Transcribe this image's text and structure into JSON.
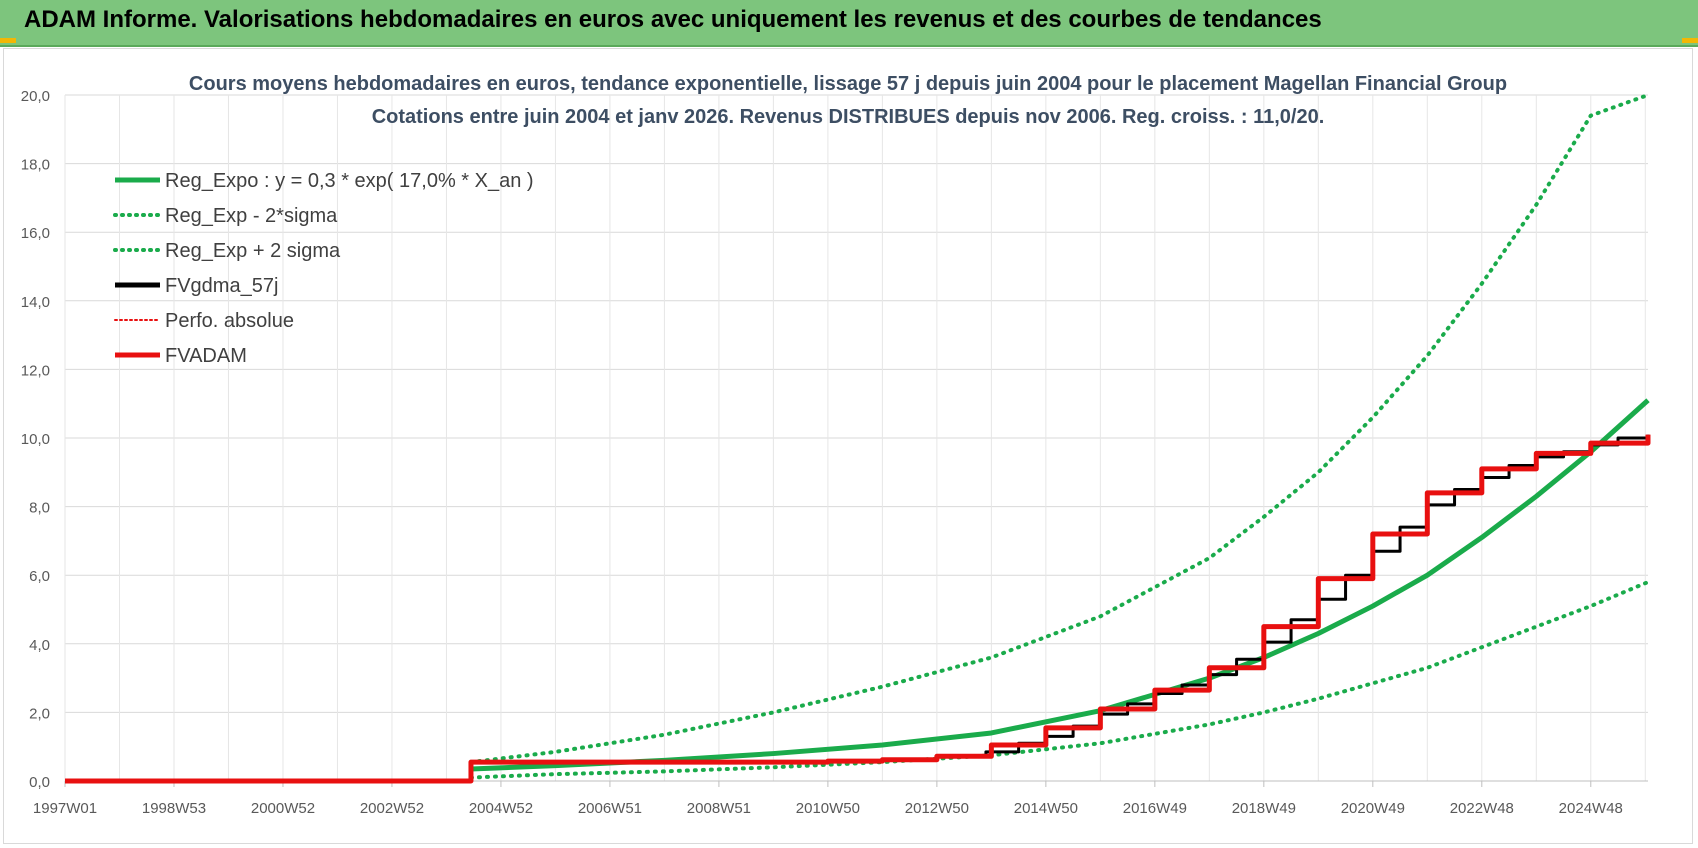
{
  "header": {
    "title": "ADAM Informe. Valorisations hebdomadaires en euros avec uniquement les revenus et des courbes de tendances"
  },
  "colors": {
    "banner": "#7dc57d",
    "trend_green": "#1aab4b",
    "fvgdma_black": "#000000",
    "fvadam_red": "#e81010"
  },
  "chart_data": {
    "type": "line",
    "title": "Cours moyens hebdomadaires en euros, tendance exponentielle, lissage 57 j depuis juin 2004 pour le placement Magellan Financial Group",
    "subtitle": "Cotations entre juin 2004 et janv 2026.  Revenus DISTRIBUES depuis nov 2006. Reg. croiss. : 11,0/20.",
    "x_tick_labels": [
      "1997W01",
      "1998W53",
      "2000W52",
      "2002W52",
      "2004W52",
      "2006W51",
      "2008W51",
      "2010W50",
      "2012W50",
      "2014W50",
      "2016W49",
      "2018W49",
      "2020W49",
      "2022W48",
      "2024W48"
    ],
    "xlim": [
      1997.0,
      2026.05
    ],
    "ylim": [
      0,
      20
    ],
    "y_ticks": [
      "0,0",
      "2,0",
      "4,0",
      "6,0",
      "8,0",
      "10,0",
      "12,0",
      "14,0",
      "16,0",
      "18,0",
      "20,0"
    ],
    "grid": true,
    "legend_position": "top-left",
    "legend": [
      {
        "label": "Reg_Expo : y = 0,3 * exp( 17,0% *  X_an )",
        "style": "solid",
        "color": "#1aab4b"
      },
      {
        "label": "Reg_Exp - 2*sigma",
        "style": "dotted",
        "color": "#1aab4b"
      },
      {
        "label": "Reg_Exp + 2 sigma",
        "style": "dotted",
        "color": "#1aab4b"
      },
      {
        "label": "FVgdma_57j",
        "style": "solid",
        "color": "#000000"
      },
      {
        "label": "Perfo. absolue",
        "style": "dotted",
        "color": "#e81010"
      },
      {
        "label": "FVADAM",
        "style": "solid",
        "color": "#e81010"
      }
    ],
    "series": [
      {
        "name": "Reg_Expo : y = 0,3 * exp( 17,0% *  X_an )",
        "x": [
          2004.45,
          2006,
          2008,
          2010,
          2012,
          2014,
          2016,
          2018,
          2019,
          2020,
          2021,
          2022,
          2023,
          2024,
          2025,
          2026.05
        ],
        "y": [
          0.35,
          0.45,
          0.6,
          0.8,
          1.05,
          1.4,
          2.05,
          3.0,
          3.6,
          4.3,
          5.1,
          6.0,
          7.1,
          8.3,
          9.6,
          11.1
        ]
      },
      {
        "name": "Reg_Exp - 2*sigma",
        "x": [
          2004.45,
          2006,
          2008,
          2010,
          2012,
          2014,
          2016,
          2018,
          2019,
          2020,
          2021,
          2022,
          2023,
          2024,
          2025,
          2026.05
        ],
        "y": [
          0.1,
          0.2,
          0.28,
          0.4,
          0.55,
          0.75,
          1.1,
          1.65,
          2.0,
          2.4,
          2.85,
          3.3,
          3.9,
          4.5,
          5.1,
          5.8
        ]
      },
      {
        "name": "Reg_Exp + 2 sigma",
        "x": [
          2004.45,
          2006,
          2008,
          2010,
          2012,
          2014,
          2016,
          2018,
          2019,
          2020,
          2021,
          2022,
          2023,
          2024,
          2025,
          2026.05
        ],
        "y": [
          0.55,
          0.85,
          1.35,
          2.0,
          2.75,
          3.6,
          4.8,
          6.5,
          7.7,
          9.0,
          10.6,
          12.4,
          14.5,
          16.8,
          19.4,
          20.0
        ]
      },
      {
        "name": "FVgdma_57j",
        "x": [
          2004.45,
          2006.85,
          2009,
          2011,
          2012,
          2013,
          2013.9,
          2014.5,
          2015,
          2015.5,
          2016,
          2016.5,
          2017,
          2017.5,
          2018,
          2018.5,
          2019,
          2019.5,
          2020,
          2020.5,
          2021,
          2021.5,
          2022,
          2022.5,
          2023,
          2023.5,
          2024,
          2024.5,
          2025,
          2025.5,
          2026.05
        ],
        "y": [
          0.55,
          0.55,
          0.55,
          0.58,
          0.62,
          0.7,
          0.85,
          1.1,
          1.3,
          1.6,
          1.95,
          2.25,
          2.55,
          2.8,
          3.1,
          3.55,
          4.05,
          4.7,
          5.3,
          6.0,
          6.7,
          7.4,
          8.05,
          8.5,
          8.85,
          9.2,
          9.45,
          9.6,
          9.8,
          10.0,
          10.1
        ]
      },
      {
        "name": "Perfo. absolue",
        "x": [
          1997.0,
          2004.44,
          2004.45,
          2008,
          2011,
          2012,
          2013,
          2014,
          2015,
          2016,
          2017,
          2018,
          2019,
          2020,
          2021,
          2022,
          2023,
          2024,
          2025,
          2026.05
        ],
        "y": [
          0,
          0,
          0.55,
          0.55,
          0.58,
          0.62,
          0.72,
          1.05,
          1.55,
          2.1,
          2.65,
          3.3,
          4.5,
          5.9,
          7.2,
          8.4,
          9.1,
          9.55,
          9.85,
          10.1
        ]
      },
      {
        "name": "FVADAM",
        "x": [
          1997.0,
          2004.44,
          2004.45,
          2008,
          2011,
          2012,
          2013,
          2014,
          2015,
          2016,
          2017,
          2018,
          2019,
          2020,
          2021,
          2022,
          2023,
          2024,
          2025,
          2026.05
        ],
        "y": [
          0,
          0,
          0.55,
          0.55,
          0.58,
          0.62,
          0.72,
          1.05,
          1.55,
          2.1,
          2.65,
          3.3,
          4.5,
          5.9,
          7.2,
          8.4,
          9.1,
          9.55,
          9.85,
          10.1
        ]
      }
    ]
  }
}
